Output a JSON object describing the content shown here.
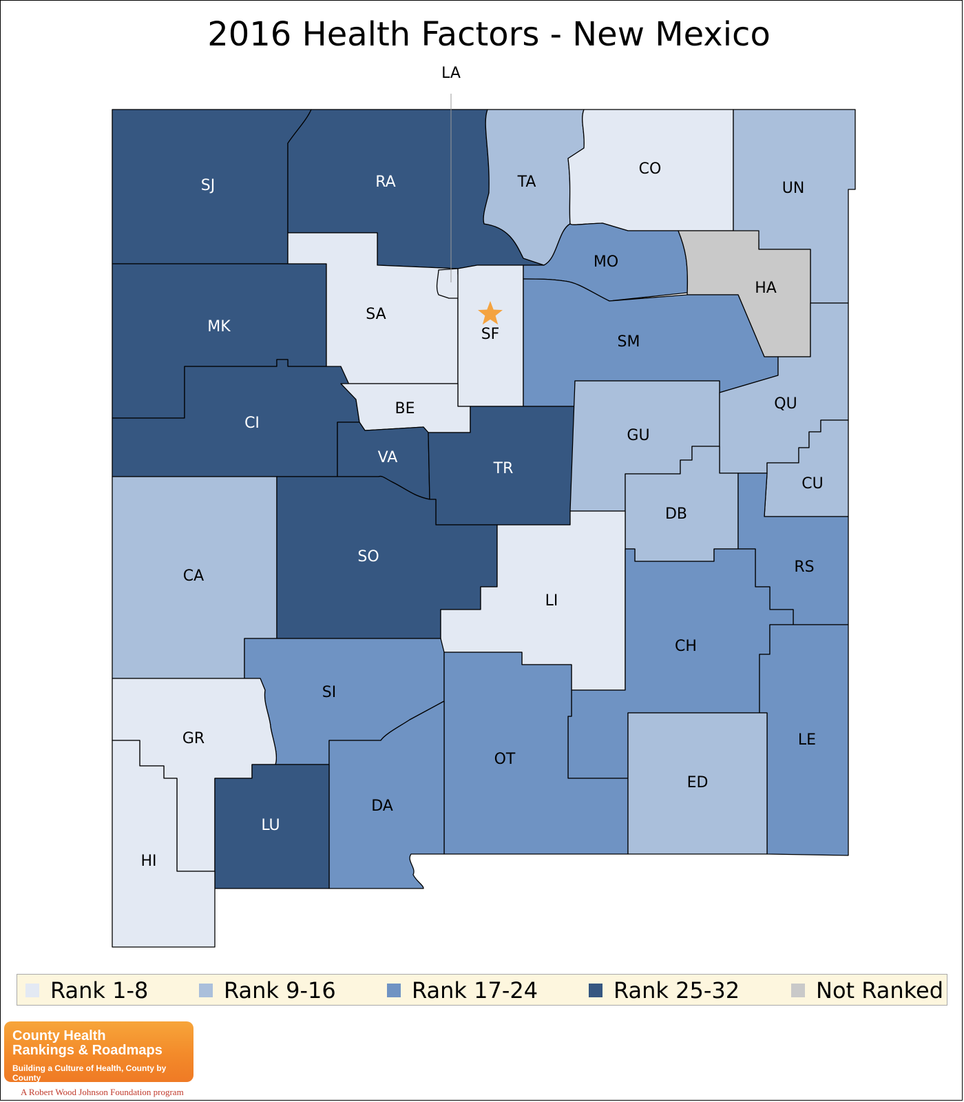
{
  "title": "2016 Health Factors - New Mexico",
  "colors": {
    "rank_1_8": "#e3e9f3",
    "rank_9_16": "#aabfdb",
    "rank_17_24": "#6f93c3",
    "rank_25_32": "#365781",
    "not_ranked": "#c9c9c9",
    "star": "#f4a340"
  },
  "legend": [
    {
      "label": "Rank 1-8",
      "color": "#e3e9f3"
    },
    {
      "label": "Rank 9-16",
      "color": "#aabfdb"
    },
    {
      "label": "Rank 17-24",
      "color": "#6f93c3"
    },
    {
      "label": "Rank 25-32",
      "color": "#365781"
    },
    {
      "label": "Not Ranked",
      "color": "#c9c9c9"
    }
  ],
  "counties": [
    {
      "abbr": "SJ",
      "rank_group": "Rank 25-32"
    },
    {
      "abbr": "RA",
      "rank_group": "Rank 25-32"
    },
    {
      "abbr": "TA",
      "rank_group": "Rank 9-16"
    },
    {
      "abbr": "CO",
      "rank_group": "Rank 1-8"
    },
    {
      "abbr": "UN",
      "rank_group": "Rank 9-16"
    },
    {
      "abbr": "MK",
      "rank_group": "Rank 25-32"
    },
    {
      "abbr": "SA",
      "rank_group": "Rank 1-8"
    },
    {
      "abbr": "LA",
      "rank_group": "Rank 1-8"
    },
    {
      "abbr": "SF",
      "rank_group": "Rank 1-8"
    },
    {
      "abbr": "MO",
      "rank_group": "Rank 17-24"
    },
    {
      "abbr": "HA",
      "rank_group": "Not Ranked"
    },
    {
      "abbr": "SM",
      "rank_group": "Rank 17-24"
    },
    {
      "abbr": "CI",
      "rank_group": "Rank 25-32"
    },
    {
      "abbr": "BE",
      "rank_group": "Rank 1-8"
    },
    {
      "abbr": "VA",
      "rank_group": "Rank 25-32"
    },
    {
      "abbr": "TR",
      "rank_group": "Rank 25-32"
    },
    {
      "abbr": "GU",
      "rank_group": "Rank 9-16"
    },
    {
      "abbr": "QU",
      "rank_group": "Rank 9-16"
    },
    {
      "abbr": "CU",
      "rank_group": "Rank 9-16"
    },
    {
      "abbr": "DB",
      "rank_group": "Rank 9-16"
    },
    {
      "abbr": "RS",
      "rank_group": "Rank 17-24"
    },
    {
      "abbr": "CA",
      "rank_group": "Rank 9-16"
    },
    {
      "abbr": "SO",
      "rank_group": "Rank 25-32"
    },
    {
      "abbr": "LI",
      "rank_group": "Rank 1-8"
    },
    {
      "abbr": "CH",
      "rank_group": "Rank 17-24"
    },
    {
      "abbr": "SI",
      "rank_group": "Rank 17-24"
    },
    {
      "abbr": "GR",
      "rank_group": "Rank 1-8"
    },
    {
      "abbr": "OT",
      "rank_group": "Rank 17-24"
    },
    {
      "abbr": "LE",
      "rank_group": "Rank 17-24"
    },
    {
      "abbr": "ED",
      "rank_group": "Rank 9-16"
    },
    {
      "abbr": "DA",
      "rank_group": "Rank 17-24"
    },
    {
      "abbr": "LU",
      "rank_group": "Rank 25-32"
    },
    {
      "abbr": "HI",
      "rank_group": "Rank 1-8"
    }
  ],
  "capital_county": "SF",
  "logo": {
    "line1": "County Health",
    "line2": "Rankings & Roadmaps",
    "tagline": "Building a Culture of Health, County by County",
    "program": "A Robert Wood Johnson Foundation program"
  }
}
